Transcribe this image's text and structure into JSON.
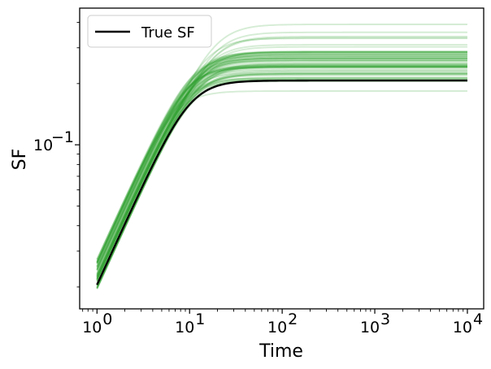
{
  "chart_data": {
    "type": "line",
    "title": "",
    "xlabel": "Time",
    "ylabel": "SF",
    "xscale": "log",
    "yscale": "log",
    "xlim": [
      0.65,
      15000
    ],
    "ylim": [
      0.0156,
      0.47
    ],
    "grid": false,
    "legend": {
      "placement": "top-left",
      "entries": [
        "True SF"
      ]
    },
    "x_tick_labels": [
      {
        "base": "10",
        "exp": "0",
        "value": 1
      },
      {
        "base": "10",
        "exp": "1",
        "value": 10
      },
      {
        "base": "10",
        "exp": "2",
        "value": 100
      },
      {
        "base": "10",
        "exp": "3",
        "value": 1000
      },
      {
        "base": "10",
        "exp": "4",
        "value": 10000
      }
    ],
    "y_tick_labels": [
      {
        "base": "10",
        "exp": "−1",
        "value": 0.1
      }
    ],
    "true_curve": {
      "name": "True SF",
      "color": "#000000",
      "x_start": 1,
      "x_end": 10000,
      "y_start": 0.0205,
      "y_plateau": 0.207,
      "knee_time": 180
    },
    "samples": {
      "color": "#2ca02c",
      "count": 70,
      "y_start_range": [
        0.0185,
        0.0285
      ],
      "y_plateau_range": [
        0.17,
        0.4
      ]
    }
  }
}
